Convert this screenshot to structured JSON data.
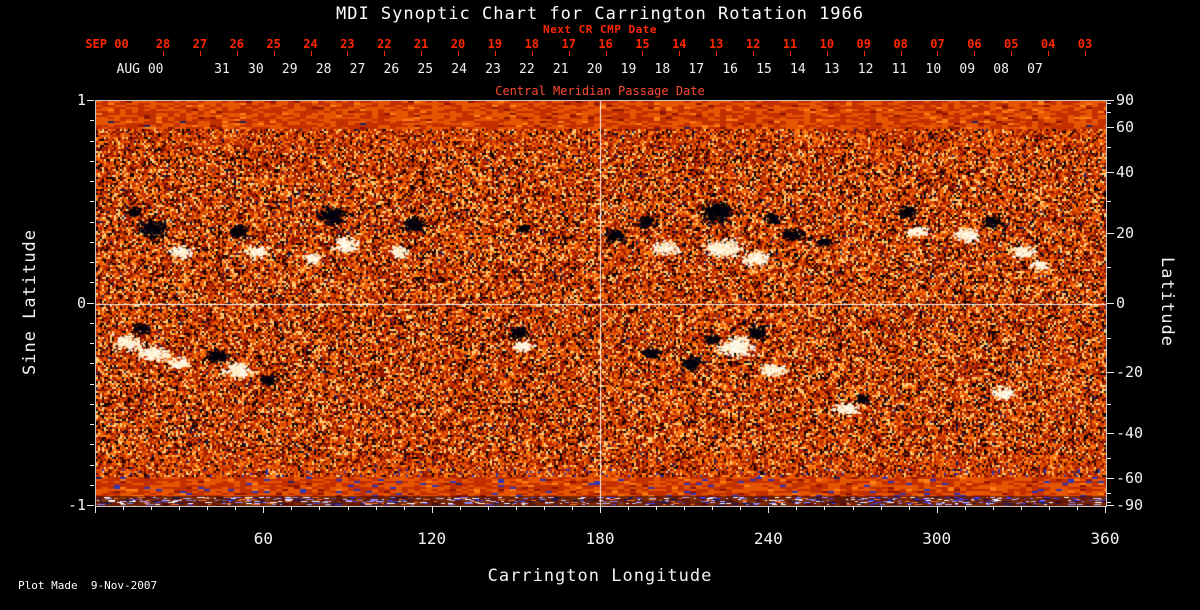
{
  "title": "MDI Synoptic Chart for Carrington Rotation 1966",
  "colors": {
    "background": "#000000",
    "accent_red": "#ff2600",
    "cmp_label": "#ff4a30",
    "text_white": "#f2f2f2",
    "frame": "#c8c8c8"
  },
  "top_axis": {
    "next_cr_label": "Next CR CMP Date",
    "red_month": "SEP 00",
    "red_days": [
      "28",
      "27",
      "26",
      "25",
      "24",
      "23",
      "22",
      "21",
      "20",
      "19",
      "18",
      "17",
      "16",
      "15",
      "14",
      "13",
      "12",
      "11",
      "10",
      "09",
      "08",
      "07",
      "06",
      "05",
      "04",
      "03"
    ],
    "white_month": "AUG 00",
    "white_days": [
      "31",
      "30",
      "29",
      "28",
      "27",
      "26",
      "25",
      "24",
      "23",
      "22",
      "21",
      "20",
      "19",
      "18",
      "17",
      "16",
      "15",
      "14",
      "13",
      "12",
      "11",
      "10",
      "09",
      "08",
      "07"
    ],
    "axis_label": "Central Meridian Passage Date"
  },
  "footer": {
    "plot_made": "Plot Made  9-Nov-2007"
  },
  "chart_data": {
    "type": "heatmap",
    "subtype": "solar-synoptic-magnetogram",
    "title": "MDI Synoptic Chart for Carrington Rotation 1966",
    "xlabel": "Carrington Longitude",
    "ylabel_left": "Sine Latitude",
    "ylabel_right": "Latitude",
    "xlim": [
      0,
      360
    ],
    "x_ticks": [
      60,
      120,
      180,
      240,
      300,
      360
    ],
    "x_minor_step": 10,
    "ylim_sine": [
      -1,
      1
    ],
    "y_ticks_sine": [
      {
        "label": "1",
        "value": 1
      },
      {
        "label": "0",
        "value": 0
      },
      {
        "label": "-1",
        "value": -1
      }
    ],
    "y_minor_sine_step": 0.1,
    "y_ticks_latitude": [
      90,
      60,
      40,
      20,
      0,
      -20,
      -40,
      -60,
      -90
    ],
    "y_minor_latitude": [
      80,
      70,
      50,
      30,
      10,
      -10,
      -30,
      -50,
      -70,
      -80
    ],
    "grid": {
      "vertical_longitude": 180,
      "horizontal_latitude": 0,
      "color": "#ffffff"
    },
    "palette": {
      "darkest": "#160301",
      "dark_red": "#8e1500",
      "red": "#c33000",
      "orange": "#e65500",
      "bright_orange": "#ff8015",
      "light": "#ffcf7a",
      "positive_field": "#fff7e2",
      "negative_field": "#05030a",
      "speckle_blue": "#3535b0"
    },
    "bottom_band_colors": [
      "#3c3cf0",
      "#8a8aff",
      "#ffffff",
      "#ff7a30",
      "#16164e",
      "#c0c0ff"
    ],
    "active_regions": [
      {
        "lon": 20,
        "lat": 22,
        "pol": "-",
        "r": 13
      },
      {
        "lon": 13,
        "lat": 27,
        "pol": "-",
        "r": 7
      },
      {
        "lon": 30,
        "lat": 15,
        "pol": "+",
        "r": 9
      },
      {
        "lon": 50,
        "lat": 21,
        "pol": "-",
        "r": 10
      },
      {
        "lon": 57,
        "lat": 15,
        "pol": "+",
        "r": 9
      },
      {
        "lon": 84,
        "lat": 26,
        "pol": "-",
        "r": 13
      },
      {
        "lon": 89,
        "lat": 17,
        "pol": "+",
        "r": 10
      },
      {
        "lon": 77,
        "lat": 13,
        "pol": "+",
        "r": 7
      },
      {
        "lon": 113,
        "lat": 23,
        "pol": "-",
        "r": 11
      },
      {
        "lon": 108,
        "lat": 15,
        "pol": "+",
        "r": 8
      },
      {
        "lon": 152,
        "lat": 22,
        "pol": "-",
        "r": 6
      },
      {
        "lon": 185,
        "lat": 20,
        "pol": "-",
        "r": 10
      },
      {
        "lon": 196,
        "lat": 24,
        "pol": "-",
        "r": 9
      },
      {
        "lon": 203,
        "lat": 16,
        "pol": "+",
        "r": 10
      },
      {
        "lon": 221,
        "lat": 27,
        "pol": "-",
        "r": 15
      },
      {
        "lon": 223,
        "lat": 16,
        "pol": "+",
        "r": 14
      },
      {
        "lon": 235,
        "lat": 13,
        "pol": "+",
        "r": 11
      },
      {
        "lon": 241,
        "lat": 25,
        "pol": "-",
        "r": 8
      },
      {
        "lon": 248,
        "lat": 20,
        "pol": "-",
        "r": 9
      },
      {
        "lon": 259,
        "lat": 18,
        "pol": "-",
        "r": 7
      },
      {
        "lon": 289,
        "lat": 27,
        "pol": "-",
        "r": 9
      },
      {
        "lon": 292,
        "lat": 21,
        "pol": "+",
        "r": 8
      },
      {
        "lon": 310,
        "lat": 20,
        "pol": "+",
        "r": 10
      },
      {
        "lon": 319,
        "lat": 24,
        "pol": "-",
        "r": 9
      },
      {
        "lon": 330,
        "lat": 15,
        "pol": "+",
        "r": 9
      },
      {
        "lon": 336,
        "lat": 11,
        "pol": "+",
        "r": 7
      },
      {
        "lon": 11,
        "lat": -11,
        "pol": "+",
        "r": 11
      },
      {
        "lon": 20,
        "lat": -14,
        "pol": "+",
        "r": 12
      },
      {
        "lon": 16,
        "lat": -7,
        "pol": "-",
        "r": 8
      },
      {
        "lon": 29,
        "lat": -17,
        "pol": "+",
        "r": 9
      },
      {
        "lon": 43,
        "lat": -15,
        "pol": "-",
        "r": 10
      },
      {
        "lon": 50,
        "lat": -19,
        "pol": "+",
        "r": 11
      },
      {
        "lon": 61,
        "lat": -22,
        "pol": "-",
        "r": 8
      },
      {
        "lon": 150,
        "lat": -8,
        "pol": "-",
        "r": 9
      },
      {
        "lon": 152,
        "lat": -12,
        "pol": "+",
        "r": 8
      },
      {
        "lon": 198,
        "lat": -14,
        "pol": "-",
        "r": 9
      },
      {
        "lon": 212,
        "lat": -17,
        "pol": "-",
        "r": 10
      },
      {
        "lon": 228,
        "lat": -12,
        "pol": "+",
        "r": 14
      },
      {
        "lon": 235,
        "lat": -8,
        "pol": "-",
        "r": 9
      },
      {
        "lon": 241,
        "lat": -19,
        "pol": "+",
        "r": 10
      },
      {
        "lon": 219,
        "lat": -10,
        "pol": "-",
        "r": 7
      },
      {
        "lon": 267,
        "lat": -31,
        "pol": "+",
        "r": 9
      },
      {
        "lon": 273,
        "lat": -28,
        "pol": "-",
        "r": 7
      },
      {
        "lon": 323,
        "lat": -26,
        "pol": "+",
        "r": 9
      }
    ]
  }
}
